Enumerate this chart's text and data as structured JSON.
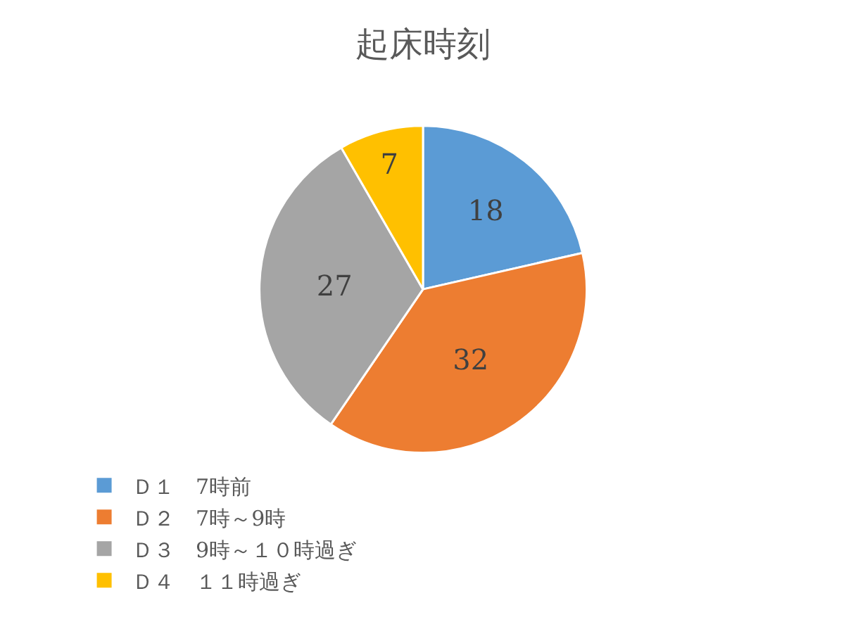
{
  "chart_data": {
    "type": "pie",
    "title": "起床時刻",
    "categories": [
      "Ｄ１　7時前",
      "Ｄ２　7時～9時",
      "Ｄ３　9時～１０時過ぎ",
      "Ｄ４　１１時過ぎ"
    ],
    "values": [
      18,
      32,
      27,
      7
    ],
    "colors": [
      "#5b9bd5",
      "#ed7d31",
      "#a5a5a5",
      "#ffc000"
    ],
    "data_labels": true,
    "legend": "bottom"
  }
}
